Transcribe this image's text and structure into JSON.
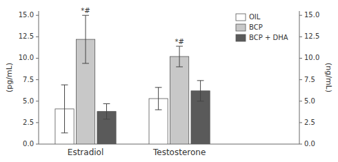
{
  "chart_data": {
    "type": "bar",
    "categories": [
      "Estradiol",
      "Testosterone"
    ],
    "series": [
      {
        "name": "OIL",
        "color": "white",
        "values": [
          4.1,
          5.3
        ],
        "errors": [
          2.8,
          1.3
        ]
      },
      {
        "name": "BCP",
        "color": "#c8c8c8",
        "values": [
          12.2,
          10.2
        ],
        "errors": [
          2.8,
          1.2
        ],
        "annotations": [
          "*#",
          "*#"
        ]
      },
      {
        "name": "BCP + DHA",
        "color": "#5a5a5a",
        "values": [
          3.8,
          6.2
        ],
        "errors": [
          0.9,
          1.2
        ]
      }
    ],
    "ylabel": "(pg/mL)",
    "y2label": "(ng/mL)",
    "ylim": [
      0,
      15.5
    ],
    "yticks": [
      {
        "value": 0,
        "label": "0.0"
      },
      2.5,
      {
        "value": 5,
        "label": "5.0"
      },
      7.5,
      {
        "value": 10,
        "label": "10.0"
      },
      12.5,
      {
        "value": 15,
        "label": "15.0"
      }
    ],
    "y2lim": [
      0,
      15.5
    ],
    "y2ticks": [
      {
        "value": 0,
        "label": "0.0"
      },
      2.5,
      {
        "value": 5,
        "label": "5.0"
      },
      7.5,
      {
        "value": 10,
        "label": "10.0"
      },
      12.5,
      {
        "value": 15,
        "label": "15.0"
      }
    ],
    "grid": false,
    "legend": "upper right"
  }
}
